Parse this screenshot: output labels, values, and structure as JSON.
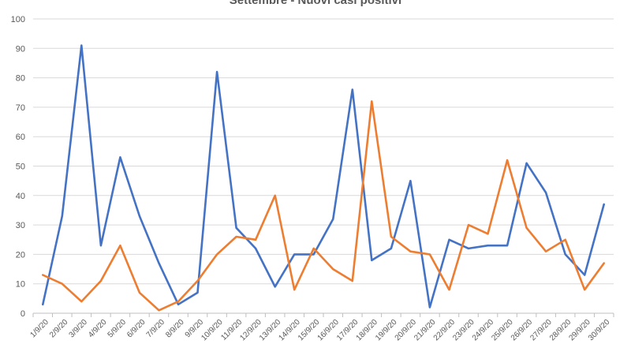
{
  "chart_data": {
    "type": "line",
    "title": "Settembre - Nuovi casi positivi",
    "xlabel": "",
    "ylabel": "",
    "ylim": [
      0,
      100
    ],
    "yticks": [
      0,
      10,
      20,
      30,
      40,
      50,
      60,
      70,
      80,
      90,
      100
    ],
    "grid": true,
    "legend": "none",
    "categories": [
      "1/9/20",
      "2/9/20",
      "3/9/20",
      "4/9/20",
      "5/9/20",
      "6/9/20",
      "7/9/20",
      "8/9/20",
      "9/9/20",
      "10/9/20",
      "11/9/20",
      "12/9/20",
      "13/9/20",
      "14/9/20",
      "15/9/20",
      "16/9/20",
      "17/9/20",
      "18/9/20",
      "19/9/20",
      "20/9/20",
      "21/9/20",
      "22/9/20",
      "23/9/20",
      "24/9/20",
      "25/9/20",
      "26/9/20",
      "27/9/20",
      "28/9/20",
      "29/9/20",
      "30/9/20"
    ],
    "series": [
      {
        "color": "#4472C4",
        "values": [
          3,
          33,
          91,
          23,
          53,
          33,
          17,
          3,
          7,
          82,
          29,
          22,
          9,
          20,
          20,
          32,
          76,
          18,
          22,
          45,
          2,
          25,
          22,
          23,
          23,
          51,
          41,
          20,
          13,
          37
        ]
      },
      {
        "color": "#ED7D31",
        "values": [
          13,
          10,
          4,
          11,
          23,
          7,
          1,
          4,
          11,
          20,
          26,
          25,
          40,
          8,
          22,
          15,
          11,
          72,
          26,
          21,
          20,
          8,
          30,
          27,
          52,
          29,
          21,
          25,
          8,
          17
        ]
      }
    ]
  }
}
